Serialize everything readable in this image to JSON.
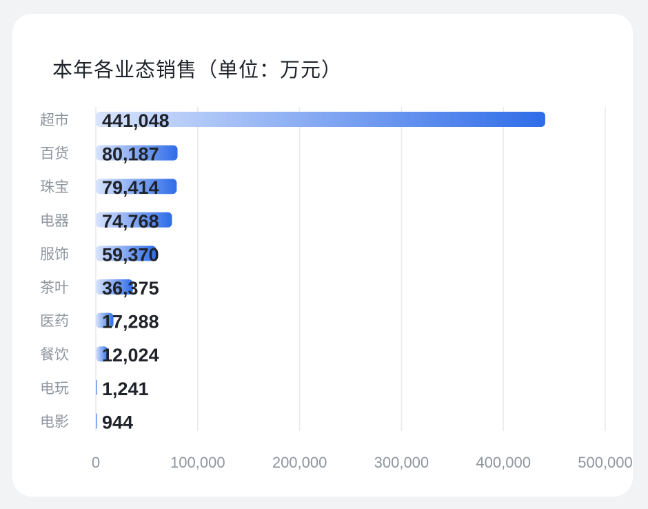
{
  "chart_data": {
    "type": "bar",
    "orientation": "horizontal",
    "title": "本年各业态销售（单位：万元）",
    "categories": [
      "超市",
      "百货",
      "珠宝",
      "电器",
      "服饰",
      "茶叶",
      "医药",
      "餐饮",
      "电玩",
      "电影"
    ],
    "values": [
      441048,
      80187,
      79414,
      74768,
      59370,
      36375,
      17288,
      12024,
      1241,
      944
    ],
    "value_labels": [
      "441,048",
      "80,187",
      "79,414",
      "74,768",
      "59,370",
      "36,375",
      "17,288",
      "12,024",
      "1,241",
      "944"
    ],
    "xlim": [
      0,
      500000
    ],
    "x_ticks": [
      0,
      100000,
      200000,
      300000,
      400000,
      500000
    ],
    "x_tick_labels": [
      "0",
      "100,000",
      "200,000",
      "300,000",
      "400,000",
      "500,000"
    ],
    "grid": "vertical",
    "colors": {
      "bar_start": "#d8e4fc",
      "bar_end": "#2f6ce8",
      "label": "#1f2329",
      "axis_text": "#8f959e",
      "grid": "#e8e9eb"
    }
  }
}
